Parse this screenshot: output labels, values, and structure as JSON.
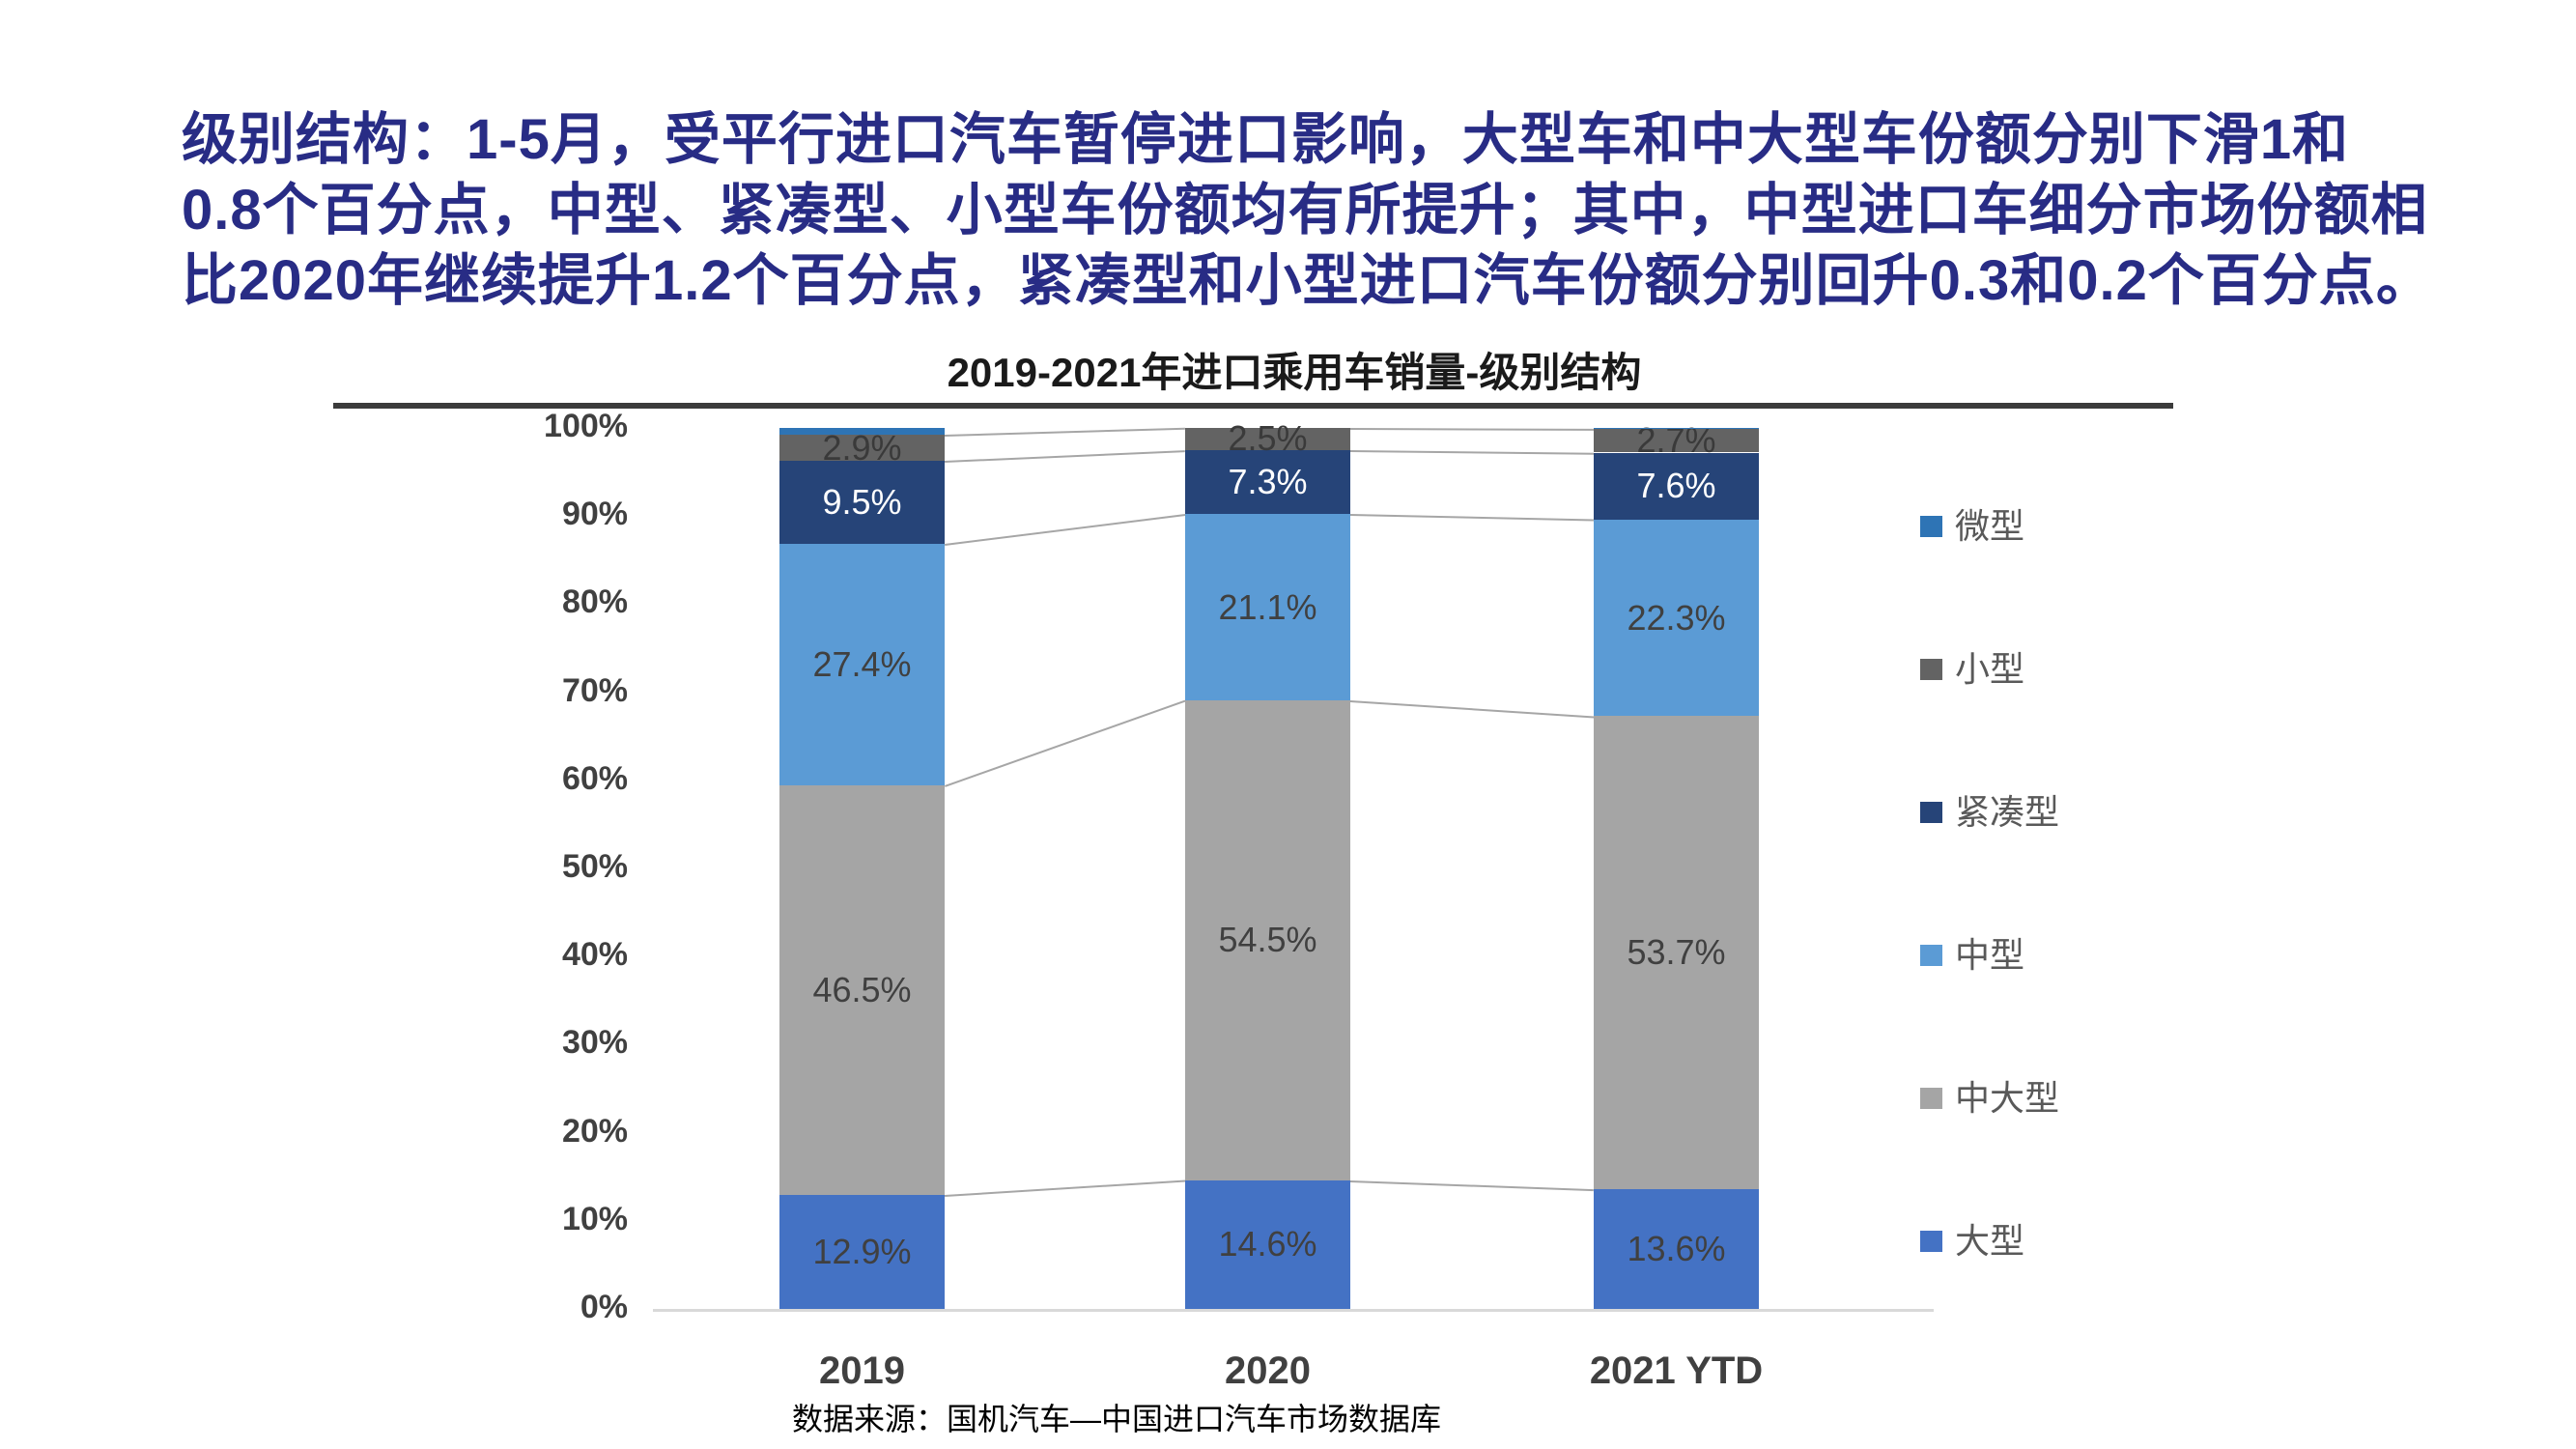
{
  "header": {
    "color": "#282C85",
    "lines": [
      "级别结构：1-5月，受平行进口汽车暂停进口影响，大型车和中大型车份额分别下滑1和",
      "0.8个百分点，中型、紧凑型、小型车份额均有所提升；其中，中型进口车细分市场份额相",
      "比2020年继续提升1.2个百分点，紧凑型和小型进口汽车份额分别回升0.3和0.2个百分点。"
    ]
  },
  "chart": {
    "title": "2019-2021年进口乘用车销量-级别结构",
    "source": "数据来源：国机汽车—中国进口汽车市场数据库"
  },
  "chart_data": {
    "type": "bar",
    "stacked": true,
    "title": "2019-2021年进口乘用车销量-级别结构",
    "categories": [
      "2019",
      "2020",
      "2021 YTD"
    ],
    "series": [
      {
        "name": "大型",
        "color": "#4472C4",
        "values": [
          12.9,
          14.6,
          13.6
        ],
        "labels": [
          "12.9%",
          "14.6%",
          "13.6%"
        ],
        "label_color": "#404040"
      },
      {
        "name": "中大型",
        "color": "#A5A5A5",
        "values": [
          46.5,
          54.5,
          53.7
        ],
        "labels": [
          "46.5%",
          "54.5%",
          "53.7%"
        ],
        "label_color": "#404040"
      },
      {
        "name": "中型",
        "color": "#5B9BD5",
        "values": [
          27.4,
          21.1,
          22.3
        ],
        "labels": [
          "27.4%",
          "21.1%",
          "22.3%"
        ],
        "label_color": "#404040"
      },
      {
        "name": "紧凑型",
        "color": "#264478",
        "values": [
          9.5,
          7.3,
          7.6
        ],
        "labels": [
          "9.5%",
          "7.3%",
          "7.6%"
        ],
        "label_color": "#FFFFFF"
      },
      {
        "name": "小型",
        "color": "#636363",
        "values": [
          2.9,
          2.5,
          2.7
        ],
        "labels": [
          "2.9%",
          "2.5%",
          "2.7%"
        ],
        "label_color": "#3A3A3A"
      },
      {
        "name": "微型",
        "color": "#2E74B5",
        "values": [
          0.8,
          0.0,
          0.1
        ],
        "labels": [
          "",
          "",
          ""
        ],
        "label_color": "#404040"
      }
    ],
    "y_axis": {
      "min": 0,
      "max": 100,
      "ticks": [
        {
          "value": 100,
          "label": "100%"
        },
        {
          "value": 90,
          "label": "90%"
        },
        {
          "value": 80,
          "label": "80%"
        },
        {
          "value": 70,
          "label": "70%"
        },
        {
          "value": 60,
          "label": "60%"
        },
        {
          "value": 50,
          "label": "50%"
        },
        {
          "value": 40,
          "label": "40%"
        },
        {
          "value": 30,
          "label": "30%"
        },
        {
          "value": 20,
          "label": "20%"
        },
        {
          "value": 10,
          "label": "10%"
        },
        {
          "value": 0,
          "label": "0%"
        }
      ]
    },
    "legend_position": "right",
    "legend_order_top_to_bottom": [
      "微型",
      "小型",
      "紧凑型",
      "中型",
      "中大型",
      "大型"
    ],
    "connector_line_color": "#A6A6A6",
    "gridlines": false
  }
}
